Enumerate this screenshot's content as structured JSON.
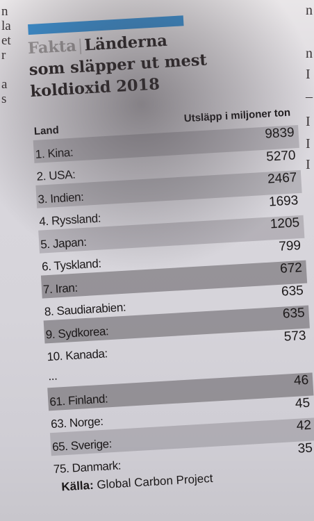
{
  "left_gutter": [
    "n",
    "la",
    "et",
    "r",
    "",
    "a",
    "s"
  ],
  "right_gutter": [
    "n",
    "n",
    "I",
    "–",
    "I",
    "I",
    "I"
  ],
  "header": {
    "kicker": "Fakta",
    "title_line1": "Länderna",
    "title_line2": "som släpper ut mest",
    "title_line3": "koldioxid 2018"
  },
  "table": {
    "col_land": "Land",
    "col_value": "Utsläpp i miljoner ton",
    "rows": [
      {
        "name": "1. Kina:",
        "value": "9839"
      },
      {
        "name": "2. USA:",
        "value": "5270"
      },
      {
        "name": "3. Indien:",
        "value": "2467"
      },
      {
        "name": "4. Ryssland:",
        "value": "1693"
      },
      {
        "name": "5. Japan:",
        "value": "1205"
      },
      {
        "name": "6. Tyskland:",
        "value": "799"
      },
      {
        "name": "7. Iran:",
        "value": "672"
      },
      {
        "name": "8. Saudiarabien:",
        "value": "635"
      },
      {
        "name": "9. Sydkorea:",
        "value": "635"
      },
      {
        "name": "10. Kanada:",
        "value": "573"
      },
      {
        "name": "...",
        "value": ""
      },
      {
        "name": "61. Finland:",
        "value": "46"
      },
      {
        "name": "63. Norge:",
        "value": "45"
      },
      {
        "name": "65. Sverige:",
        "value": "42"
      },
      {
        "name": "75. Danmark:",
        "value": "35"
      }
    ]
  },
  "source": {
    "label": "Källa:",
    "text": "Global Carbon Project"
  },
  "colors": {
    "accent_bar": "#3b8fd0",
    "text": "#1b1819",
    "kicker": "#9b9798"
  }
}
